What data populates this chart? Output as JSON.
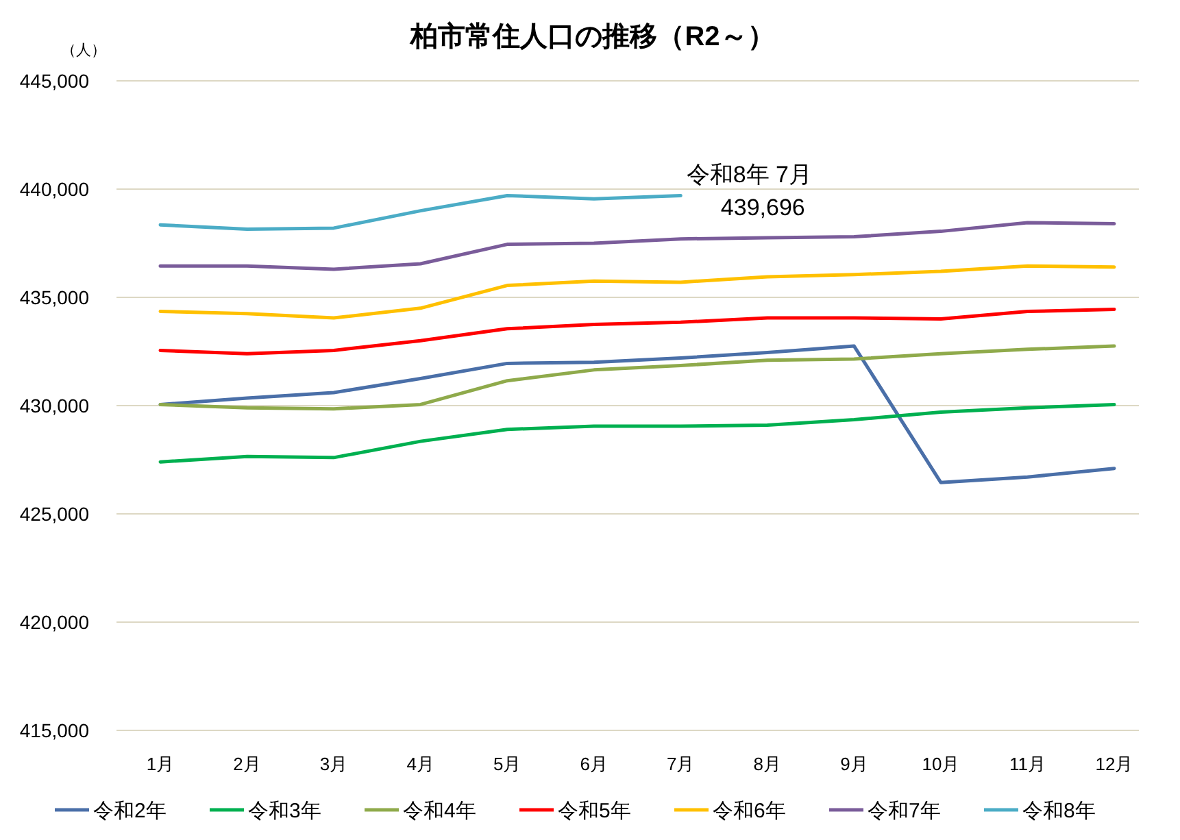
{
  "chart_data": {
    "type": "line",
    "title": "柏市常住人口の推移（R2～）",
    "ylabel": "（人）",
    "categories": [
      "1月",
      "2月",
      "3月",
      "4月",
      "5月",
      "6月",
      "7月",
      "8月",
      "9月",
      "10月",
      "11月",
      "12月"
    ],
    "series": [
      {
        "name": "令和2年",
        "color": "#4a6fa8",
        "values": [
          430050,
          430350,
          430600,
          431250,
          431950,
          432000,
          432200,
          432450,
          432750,
          426450,
          426700,
          427100
        ]
      },
      {
        "name": "令和3年",
        "color": "#00b050",
        "values": [
          427400,
          427650,
          427600,
          428350,
          428900,
          429050,
          429050,
          429100,
          429350,
          429700,
          429900,
          430050
        ]
      },
      {
        "name": "令和4年",
        "color": "#8faa4b",
        "values": [
          430050,
          429900,
          429850,
          430050,
          431150,
          431650,
          431850,
          432100,
          432150,
          432400,
          432600,
          432750
        ]
      },
      {
        "name": "令和5年",
        "color": "#ff0000",
        "values": [
          432550,
          432400,
          432550,
          433000,
          433550,
          433750,
          433850,
          434050,
          434050,
          434000,
          434350,
          434450
        ]
      },
      {
        "name": "令和6年",
        "color": "#ffc000",
        "values": [
          434350,
          434250,
          434050,
          434500,
          435550,
          435750,
          435700,
          435950,
          436050,
          436200,
          436450,
          436400
        ]
      },
      {
        "name": "令和7年",
        "color": "#7a5c9a",
        "values": [
          436450,
          436450,
          436300,
          436550,
          437450,
          437500,
          437700,
          437750,
          437800,
          438050,
          438450,
          438400
        ]
      },
      {
        "name": "令和8年",
        "color": "#4bacc6",
        "values": [
          438350,
          438150,
          438200,
          439000,
          439700,
          439550,
          439696,
          null,
          null,
          null,
          null,
          null
        ]
      }
    ],
    "ylim": [
      415000,
      445000
    ],
    "yticks": [
      {
        "value": 415000,
        "label": "415,000"
      },
      {
        "value": 420000,
        "label": "420,000"
      },
      {
        "value": 425000,
        "label": "425,000"
      },
      {
        "value": 430000,
        "label": "430,000"
      },
      {
        "value": 435000,
        "label": "435,000"
      },
      {
        "value": 440000,
        "label": "440,000"
      },
      {
        "value": 445000,
        "label": "445,000"
      }
    ],
    "grid": "y",
    "legend": "bottom",
    "marker": "none",
    "line_style": "solid",
    "annotations": [
      {
        "text": "令和8年 7月\n439,696",
        "x": "7月",
        "y": 439696
      }
    ]
  }
}
